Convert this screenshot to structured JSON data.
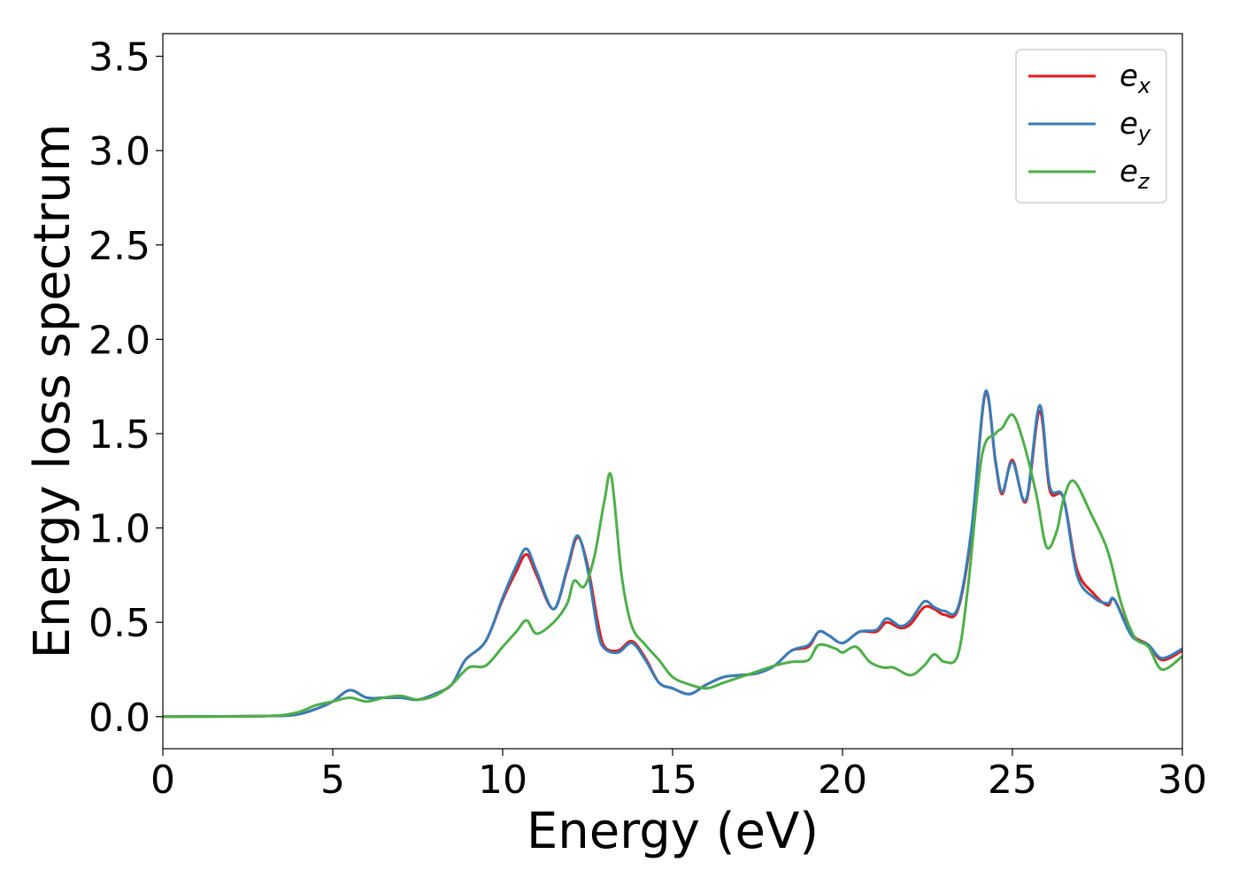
{
  "chart_data": {
    "type": "line",
    "title": "",
    "xlabel": "Energy (eV)",
    "ylabel": "Energy loss spectrum",
    "xlim": [
      0,
      30
    ],
    "ylim": [
      -0.17,
      3.62
    ],
    "xticks": [
      0,
      5,
      10,
      15,
      20,
      25,
      30
    ],
    "xtick_labels": [
      "0",
      "5",
      "10",
      "15",
      "20",
      "25",
      "30"
    ],
    "yticks": [
      0.0,
      0.5,
      1.0,
      1.5,
      2.0,
      2.5,
      3.0,
      3.5
    ],
    "ytick_labels": [
      "0.0",
      "0.5",
      "1.0",
      "1.5",
      "2.0",
      "2.5",
      "3.0",
      "3.5"
    ],
    "grid": false,
    "legend_position": "top-right",
    "series": [
      {
        "name": "e_x",
        "label_base": "e",
        "label_sub": "x",
        "color": "#e41a1c",
        "points": [
          [
            0,
            0
          ],
          [
            3,
            0.003
          ],
          [
            3.9,
            0.01
          ],
          [
            4.5,
            0.04
          ],
          [
            5.0,
            0.08
          ],
          [
            5.5,
            0.14
          ],
          [
            6.0,
            0.1
          ],
          [
            6.5,
            0.1
          ],
          [
            7.0,
            0.1
          ],
          [
            7.5,
            0.09
          ],
          [
            8.0,
            0.12
          ],
          [
            8.5,
            0.17
          ],
          [
            8.9,
            0.3
          ],
          [
            9.5,
            0.4
          ],
          [
            10.0,
            0.62
          ],
          [
            10.4,
            0.77
          ],
          [
            10.7,
            0.86
          ],
          [
            11.0,
            0.75
          ],
          [
            11.5,
            0.57
          ],
          [
            11.9,
            0.78
          ],
          [
            12.2,
            0.95
          ],
          [
            12.5,
            0.8
          ],
          [
            12.8,
            0.5
          ],
          [
            13.0,
            0.37
          ],
          [
            13.4,
            0.35
          ],
          [
            13.8,
            0.4
          ],
          [
            14.2,
            0.31
          ],
          [
            14.6,
            0.18
          ],
          [
            15.0,
            0.15
          ],
          [
            15.5,
            0.12
          ],
          [
            16.0,
            0.17
          ],
          [
            16.5,
            0.21
          ],
          [
            17.0,
            0.22
          ],
          [
            17.5,
            0.23
          ],
          [
            18.0,
            0.27
          ],
          [
            18.5,
            0.35
          ],
          [
            19.0,
            0.37
          ],
          [
            19.3,
            0.45
          ],
          [
            19.6,
            0.43
          ],
          [
            20.0,
            0.39
          ],
          [
            20.5,
            0.45
          ],
          [
            21.0,
            0.45
          ],
          [
            21.3,
            0.5
          ],
          [
            21.7,
            0.47
          ],
          [
            22.0,
            0.49
          ],
          [
            22.4,
            0.58
          ],
          [
            22.7,
            0.57
          ],
          [
            23.0,
            0.54
          ],
          [
            23.4,
            0.57
          ],
          [
            23.8,
            0.98
          ],
          [
            24.2,
            1.71
          ],
          [
            24.5,
            1.35
          ],
          [
            24.7,
            1.18
          ],
          [
            25.0,
            1.36
          ],
          [
            25.4,
            1.14
          ],
          [
            25.8,
            1.62
          ],
          [
            26.1,
            1.2
          ],
          [
            26.5,
            1.16
          ],
          [
            26.9,
            0.78
          ],
          [
            27.4,
            0.65
          ],
          [
            27.8,
            0.59
          ],
          [
            28.0,
            0.62
          ],
          [
            28.5,
            0.44
          ],
          [
            29.0,
            0.38
          ],
          [
            29.4,
            0.3
          ],
          [
            30.0,
            0.35
          ]
        ]
      },
      {
        "name": "e_y",
        "label_base": "e",
        "label_sub": "y",
        "color": "#377eb8",
        "points": [
          [
            0,
            0
          ],
          [
            3,
            0.003
          ],
          [
            3.9,
            0.01
          ],
          [
            4.5,
            0.04
          ],
          [
            5.0,
            0.08
          ],
          [
            5.5,
            0.14
          ],
          [
            6.0,
            0.1
          ],
          [
            6.5,
            0.1
          ],
          [
            7.0,
            0.1
          ],
          [
            7.5,
            0.09
          ],
          [
            8.0,
            0.12
          ],
          [
            8.5,
            0.17
          ],
          [
            8.9,
            0.3
          ],
          [
            9.5,
            0.4
          ],
          [
            10.0,
            0.63
          ],
          [
            10.4,
            0.8
          ],
          [
            10.7,
            0.89
          ],
          [
            11.0,
            0.77
          ],
          [
            11.5,
            0.57
          ],
          [
            11.9,
            0.79
          ],
          [
            12.2,
            0.96
          ],
          [
            12.5,
            0.78
          ],
          [
            12.8,
            0.45
          ],
          [
            13.0,
            0.36
          ],
          [
            13.4,
            0.34
          ],
          [
            13.8,
            0.39
          ],
          [
            14.2,
            0.3
          ],
          [
            14.6,
            0.18
          ],
          [
            15.0,
            0.15
          ],
          [
            15.5,
            0.12
          ],
          [
            16.0,
            0.17
          ],
          [
            16.5,
            0.21
          ],
          [
            17.0,
            0.22
          ],
          [
            17.5,
            0.23
          ],
          [
            18.0,
            0.27
          ],
          [
            18.5,
            0.35
          ],
          [
            19.0,
            0.38
          ],
          [
            19.3,
            0.45
          ],
          [
            19.6,
            0.43
          ],
          [
            20.0,
            0.39
          ],
          [
            20.5,
            0.45
          ],
          [
            21.0,
            0.46
          ],
          [
            21.3,
            0.52
          ],
          [
            21.7,
            0.48
          ],
          [
            22.0,
            0.51
          ],
          [
            22.4,
            0.61
          ],
          [
            22.7,
            0.58
          ],
          [
            23.0,
            0.56
          ],
          [
            23.4,
            0.58
          ],
          [
            23.8,
            1.0
          ],
          [
            24.2,
            1.72
          ],
          [
            24.5,
            1.36
          ],
          [
            24.7,
            1.19
          ],
          [
            25.0,
            1.35
          ],
          [
            25.4,
            1.15
          ],
          [
            25.8,
            1.65
          ],
          [
            26.1,
            1.22
          ],
          [
            26.5,
            1.16
          ],
          [
            26.9,
            0.75
          ],
          [
            27.4,
            0.63
          ],
          [
            27.8,
            0.6
          ],
          [
            28.0,
            0.62
          ],
          [
            28.5,
            0.43
          ],
          [
            29.0,
            0.38
          ],
          [
            29.4,
            0.31
          ],
          [
            30.0,
            0.36
          ]
        ]
      },
      {
        "name": "e_z",
        "label_base": "e",
        "label_sub": "z",
        "color": "#4daf4a",
        "points": [
          [
            0,
            0
          ],
          [
            3,
            0.003
          ],
          [
            3.9,
            0.02
          ],
          [
            4.5,
            0.06
          ],
          [
            5.0,
            0.08
          ],
          [
            5.5,
            0.1
          ],
          [
            6.0,
            0.08
          ],
          [
            6.5,
            0.1
          ],
          [
            7.0,
            0.11
          ],
          [
            7.5,
            0.09
          ],
          [
            8.0,
            0.11
          ],
          [
            8.5,
            0.17
          ],
          [
            9.0,
            0.26
          ],
          [
            9.5,
            0.27
          ],
          [
            10.0,
            0.37
          ],
          [
            10.4,
            0.45
          ],
          [
            10.7,
            0.51
          ],
          [
            11.0,
            0.44
          ],
          [
            11.5,
            0.5
          ],
          [
            11.9,
            0.6
          ],
          [
            12.1,
            0.72
          ],
          [
            12.4,
            0.69
          ],
          [
            12.7,
            0.85
          ],
          [
            13.0,
            1.15
          ],
          [
            13.2,
            1.27
          ],
          [
            13.5,
            0.75
          ],
          [
            13.8,
            0.48
          ],
          [
            14.2,
            0.38
          ],
          [
            14.6,
            0.3
          ],
          [
            15.0,
            0.21
          ],
          [
            15.5,
            0.17
          ],
          [
            16.0,
            0.15
          ],
          [
            16.5,
            0.18
          ],
          [
            17.0,
            0.21
          ],
          [
            17.5,
            0.24
          ],
          [
            18.0,
            0.27
          ],
          [
            18.5,
            0.29
          ],
          [
            19.0,
            0.3
          ],
          [
            19.3,
            0.38
          ],
          [
            19.8,
            0.36
          ],
          [
            20.0,
            0.34
          ],
          [
            20.4,
            0.37
          ],
          [
            20.8,
            0.29
          ],
          [
            21.2,
            0.26
          ],
          [
            21.5,
            0.26
          ],
          [
            22.0,
            0.22
          ],
          [
            22.4,
            0.27
          ],
          [
            22.7,
            0.33
          ],
          [
            23.0,
            0.29
          ],
          [
            23.4,
            0.33
          ],
          [
            23.7,
            0.7
          ],
          [
            24.1,
            1.38
          ],
          [
            24.5,
            1.5
          ],
          [
            24.7,
            1.53
          ],
          [
            25.0,
            1.6
          ],
          [
            25.3,
            1.47
          ],
          [
            25.7,
            1.18
          ],
          [
            26.0,
            0.9
          ],
          [
            26.3,
            0.98
          ],
          [
            26.5,
            1.15
          ],
          [
            26.8,
            1.25
          ],
          [
            27.3,
            1.08
          ],
          [
            27.8,
            0.88
          ],
          [
            28.2,
            0.6
          ],
          [
            28.6,
            0.42
          ],
          [
            29.0,
            0.37
          ],
          [
            29.4,
            0.25
          ],
          [
            30.0,
            0.32
          ]
        ]
      }
    ]
  }
}
